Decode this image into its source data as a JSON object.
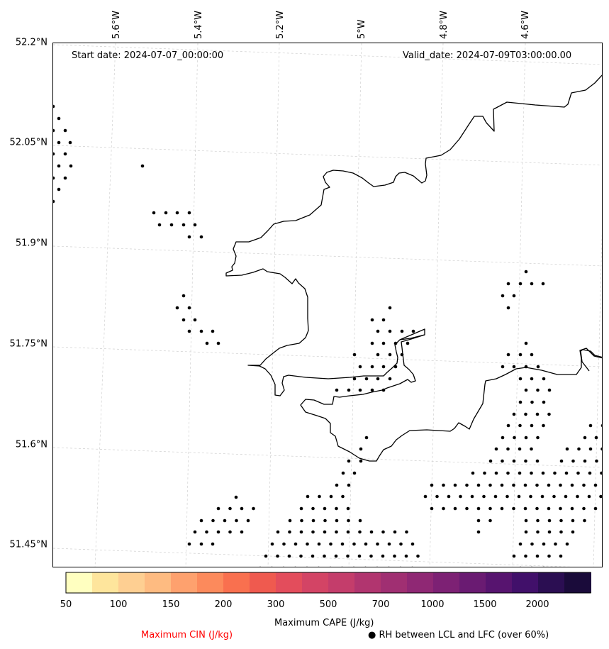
{
  "map": {
    "start_date": "Start date: 2024-07-07_00:00:00",
    "valid_date": "Valid_date: 2024-07-09T03:00:00.00",
    "lat_labels": [
      "52.2°N",
      "52.05°N",
      "51.9°N",
      "51.75°N",
      "51.6°N",
      "51.45°N"
    ],
    "lon_labels": [
      "5.6°W",
      "5.4°W",
      "5.2°W",
      "5°W",
      "4.8°W",
      "4.6°W"
    ],
    "coastline_color": "#000000",
    "gridline_color": "#d0d0d0",
    "dot_color": "#000000"
  },
  "colorbar": {
    "title": "Maximum CAPE (J/kg)",
    "tick_labels": [
      "50",
      "100",
      "150",
      "200",
      "300",
      "500",
      "700",
      "1000",
      "1500",
      "2000"
    ],
    "colors": [
      "#ffffc0",
      "#fee59c",
      "#fecf92",
      "#febb81",
      "#fea16e",
      "#fc8a5c",
      "#f9704f",
      "#ef5a4f",
      "#e34d5c",
      "#d34465",
      "#c43d6b",
      "#b1356f",
      "#a02f72",
      "#8f2874",
      "#7d2174",
      "#6a1b72",
      "#57146f",
      "#41106a",
      "#2b0e52",
      "#1a0b3a"
    ]
  },
  "legend": {
    "cin_label": "Maximum CIN (J/kg)",
    "cin_color": "#ff0000",
    "rh_label": "RH between LCL and LFC (over 60%)",
    "rh_symbol": "●"
  }
}
